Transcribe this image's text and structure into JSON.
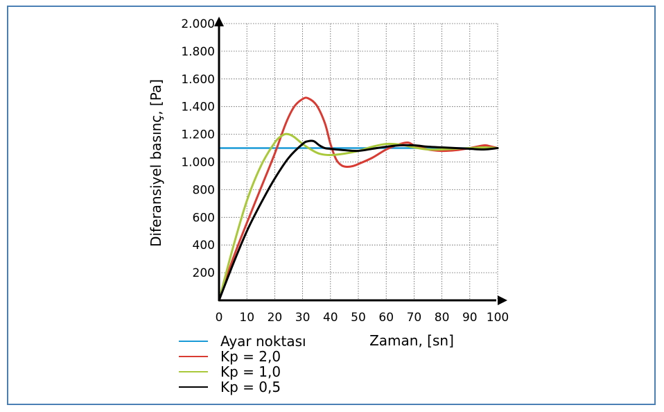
{
  "chart_data": {
    "type": "line",
    "title": "",
    "xlabel": "Zaman, [sn]",
    "ylabel": "Diferansiyel basınç, [Pa]",
    "xlim": [
      0,
      100
    ],
    "ylim": [
      0,
      2000
    ],
    "x_ticks": [
      0,
      10,
      20,
      30,
      40,
      50,
      60,
      70,
      80,
      90,
      100
    ],
    "x_tick_labels": [
      "0",
      "10",
      "20",
      "30",
      "40",
      "50",
      "60",
      "70",
      "80",
      "90",
      "100"
    ],
    "y_ticks": [
      200,
      400,
      600,
      800,
      1000,
      1200,
      1400,
      1600,
      1800,
      2000
    ],
    "y_tick_labels": [
      "200",
      "400",
      "600",
      "800",
      "1.000",
      "1.200",
      "1.400",
      "1.600",
      "1.800",
      "2.000"
    ],
    "grid": true,
    "legend_position": "bottom-left",
    "series": [
      {
        "name": "Ayar noktası",
        "color": "#1a9ad6",
        "x": [
          0,
          100
        ],
        "y": [
          1100,
          1100
        ]
      },
      {
        "name": "Kp = 2,0",
        "color": "#d93a32",
        "x": [
          0,
          5,
          10,
          15,
          20,
          24,
          27,
          30,
          32,
          35,
          38,
          40,
          42,
          44,
          46,
          48,
          50,
          55,
          60,
          65,
          68,
          70,
          75,
          80,
          85,
          90,
          95,
          97,
          100
        ],
        "y": [
          0,
          300,
          560,
          810,
          1060,
          1280,
          1400,
          1455,
          1460,
          1410,
          1280,
          1130,
          1020,
          975,
          965,
          970,
          985,
          1030,
          1090,
          1130,
          1140,
          1120,
          1090,
          1080,
          1085,
          1100,
          1120,
          1115,
          1100
        ]
      },
      {
        "name": "Kp = 1,0",
        "color": "#a9c83a",
        "x": [
          0,
          5,
          10,
          15,
          20,
          23,
          25,
          27,
          30,
          33,
          36,
          40,
          45,
          50,
          55,
          60,
          65,
          70,
          75,
          80,
          85,
          90,
          95,
          100
        ],
        "y": [
          0,
          380,
          720,
          970,
          1140,
          1195,
          1200,
          1180,
          1130,
          1090,
          1060,
          1050,
          1060,
          1080,
          1110,
          1130,
          1125,
          1105,
          1090,
          1090,
          1095,
          1100,
          1105,
          1100
        ]
      },
      {
        "name": "Kp = 0,5",
        "color": "#000000",
        "x": [
          0,
          5,
          10,
          15,
          20,
          25,
          30,
          32,
          34,
          36,
          38,
          40,
          45,
          50,
          55,
          60,
          65,
          70,
          75,
          80,
          85,
          90,
          95,
          100
        ],
        "y": [
          0,
          260,
          500,
          700,
          880,
          1030,
          1130,
          1150,
          1150,
          1120,
          1100,
          1095,
          1085,
          1080,
          1095,
          1110,
          1120,
          1120,
          1110,
          1105,
          1100,
          1095,
          1090,
          1100
        ]
      }
    ]
  }
}
